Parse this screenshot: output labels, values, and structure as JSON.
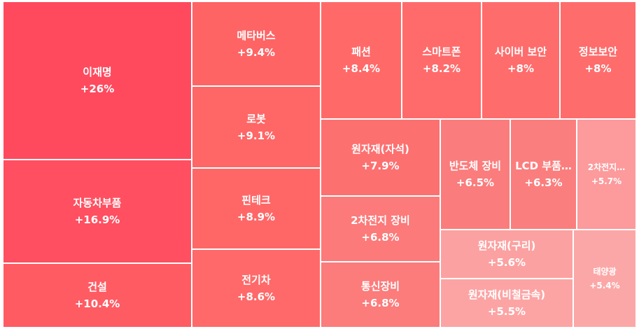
{
  "chart_data": {
    "type": "treemap",
    "items": [
      {
        "name": "이재명",
        "value": "+26%",
        "pct": 26,
        "color": "#ff4a5e"
      },
      {
        "name": "자동차부품",
        "value": "+16.9%",
        "pct": 16.9,
        "color": "#ff4f60"
      },
      {
        "name": "건설",
        "value": "+10.4%",
        "pct": 10.4,
        "color": "#ff5b63"
      },
      {
        "name": "메타버스",
        "value": "+9.4%",
        "pct": 9.4,
        "color": "#ff6465"
      },
      {
        "name": "로봇",
        "value": "+9.1%",
        "pct": 9.1,
        "color": "#ff6666"
      },
      {
        "name": "핀테크",
        "value": "+8.9%",
        "pct": 8.9,
        "color": "#ff6767"
      },
      {
        "name": "전기차",
        "value": "+8.6%",
        "pct": 8.6,
        "color": "#ff6969"
      },
      {
        "name": "패션",
        "value": "+8.4%",
        "pct": 8.4,
        "color": "#ff6a69"
      },
      {
        "name": "스마트폰",
        "value": "+8.2%",
        "pct": 8.2,
        "color": "#ff6b6b"
      },
      {
        "name": "사이버 보안",
        "value": "+8%",
        "pct": 8,
        "color": "#ff6c6c"
      },
      {
        "name": "정보보안",
        "value": "+8%",
        "pct": 8,
        "color": "#ff6c6c"
      },
      {
        "name": "원자재(자석)",
        "value": "+7.9%",
        "pct": 7.9,
        "color": "#fd7070"
      },
      {
        "name": "반도체 장비",
        "value": "+6.5%",
        "pct": 6.5,
        "color": "#fb7c7c"
      },
      {
        "name": "LCD 부품…",
        "value": "+6.3%",
        "pct": 6.3,
        "color": "#fb7e7e"
      },
      {
        "name": "2차전지…",
        "value": "+5.7%",
        "pct": 5.7,
        "color": "#fc9a9c"
      },
      {
        "name": "2차전지 장비",
        "value": "+6.8%",
        "pct": 6.8,
        "color": "#fc7a7a"
      },
      {
        "name": "통신장비",
        "value": "+6.8%",
        "pct": 6.8,
        "color": "#fc7b7b"
      },
      {
        "name": "원자재(구리)",
        "value": "+5.6%",
        "pct": 5.6,
        "color": "#fca1a1"
      },
      {
        "name": "원자재(비철금속)",
        "value": "+5.5%",
        "pct": 5.5,
        "color": "#fca4a4"
      },
      {
        "name": "태양광",
        "value": "+5.4%",
        "pct": 5.4,
        "color": "#fca7a7"
      }
    ]
  }
}
